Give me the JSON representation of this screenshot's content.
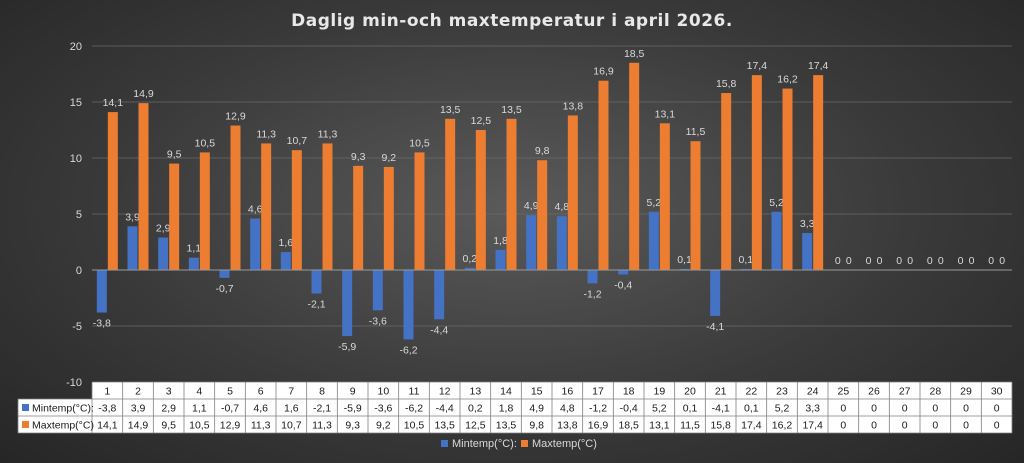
{
  "chart_data": {
    "type": "bar",
    "title": "Daglig min-och maxtemperatur i april 2026.",
    "categories": [
      "1",
      "2",
      "3",
      "4",
      "5",
      "6",
      "7",
      "8",
      "9",
      "10",
      "11",
      "12",
      "13",
      "14",
      "15",
      "16",
      "17",
      "18",
      "19",
      "20",
      "21",
      "22",
      "23",
      "24",
      "25",
      "26",
      "27",
      "28",
      "29",
      "30"
    ],
    "series": [
      {
        "name": "Mintemp(°C):",
        "color": "#4472c4",
        "values": [
          -3.8,
          3.9,
          2.9,
          1.1,
          -0.7,
          4.6,
          1.6,
          -2.1,
          -5.9,
          -3.6,
          -6.2,
          -4.4,
          0.2,
          1.8,
          4.9,
          4.8,
          -1.2,
          -0.4,
          5.2,
          0.1,
          -4.1,
          0.1,
          5.2,
          3.3,
          0,
          0,
          0,
          0,
          0,
          0
        ],
        "labels": [
          "-3,8",
          "3,9",
          "2,9",
          "1,1",
          "-0,7",
          "4,6",
          "1,6",
          "-2,1",
          "-5,9",
          "-3,6",
          "-6,2",
          "-4,4",
          "0,2",
          "1,8",
          "4,9",
          "4,8",
          "-1,2",
          "-0,4",
          "5,2",
          "0,1",
          "-4,1",
          "0,1",
          "5,2",
          "3,3",
          "0",
          "0",
          "0",
          "0",
          "0",
          "0"
        ]
      },
      {
        "name": "Maxtemp(°C)",
        "color": "#ed7d31",
        "values": [
          14.1,
          14.9,
          9.5,
          10.5,
          12.9,
          11.3,
          10.7,
          11.3,
          9.3,
          9.2,
          10.5,
          13.5,
          12.5,
          13.5,
          9.8,
          13.8,
          16.9,
          18.5,
          13.1,
          11.5,
          15.8,
          17.4,
          16.2,
          17.4,
          0,
          0,
          0,
          0,
          0,
          0
        ],
        "labels": [
          "14,1",
          "14,9",
          "9,5",
          "10,5",
          "12,9",
          "11,3",
          "10,7",
          "11,3",
          "9,3",
          "9,2",
          "10,5",
          "13,5",
          "12,5",
          "13,5",
          "9,8",
          "13,8",
          "16,9",
          "18,5",
          "13,1",
          "11,5",
          "15,8",
          "17,4",
          "16,2",
          "17,4",
          "0",
          "0",
          "0",
          "0",
          "0",
          "0"
        ]
      }
    ],
    "table_row_labels": [
      "Mintemp(°C):",
      "Maxtemp(°C)"
    ],
    "ylim": [
      -10,
      20
    ],
    "yticks": [
      "-10",
      "-5",
      "0",
      "5",
      "10",
      "15",
      "20"
    ],
    "grid": true,
    "legend_position": "bottom",
    "data_table": true
  }
}
